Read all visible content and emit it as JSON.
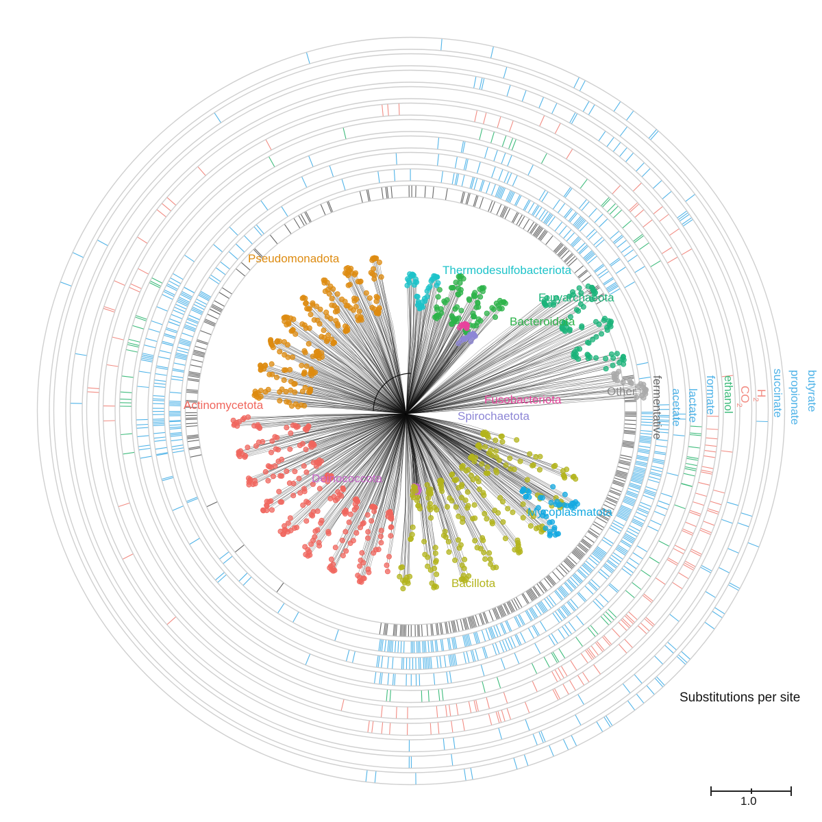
{
  "figure": {
    "kind": "circular phylogenetic tree with fermentation product rings",
    "colors": {
      "ring_outline": "#cfcfcf",
      "branch": "#111111",
      "fermentative": "#636363",
      "product_blue": "#4fb3e8",
      "product_green": "#3dbb7b",
      "product_red": "#f28b82"
    }
  },
  "clades": [
    {
      "name": "Pseudomonadota",
      "color": "#dd8b10",
      "start_deg": 102,
      "end_deg": 178
    },
    {
      "name": "Thermodesulfobacteriota",
      "color": "#1ec3c9",
      "start_deg": 78,
      "end_deg": 92
    },
    {
      "name": "Bacteroidota",
      "color": "#2db34a",
      "start_deg": 48,
      "end_deg": 77
    },
    {
      "name": "Euryarchaeota",
      "color": "#1bb37a",
      "start_deg": 12,
      "end_deg": 40
    },
    {
      "name": "Other",
      "color": "#aaaaaa",
      "start_deg": 3,
      "end_deg": 11
    },
    {
      "name": "Fusobacteriota",
      "color": "#e8439c",
      "start_deg": 56,
      "end_deg": 60
    },
    {
      "name": "Spirochaetota",
      "color": "#8d86d6",
      "start_deg": 49,
      "end_deg": 55
    },
    {
      "name": "Actinomycetota",
      "color": "#f0665d",
      "start_deg": 182,
      "end_deg": 262
    },
    {
      "name": "Deinococcota",
      "color": "#c765c9",
      "start_deg": 272,
      "end_deg": 276
    },
    {
      "name": "Bacillota",
      "color": "#b3b41c",
      "start_deg": 266,
      "end_deg": 345
    },
    {
      "name": "Mycoplasmatota",
      "color": "#14a9e1",
      "start_deg": 318,
      "end_deg": 332
    }
  ],
  "clade_labels": {
    "pseudomonadota": "Pseudomonadota",
    "thermodesulfobacteriota": "Thermodesulfobacteriota",
    "euryarchaeota": "Euryarchaeota",
    "bacteroidota": "Bacteroidota",
    "other": "Other",
    "fusobacteriota": "Fusobacteriota",
    "spirochaetota": "Spirochaetota",
    "actinomycetota": "Actinomycetota",
    "deinococcota": "Deinococcota",
    "mycoplasmatota": "Mycoplasmatota",
    "bacillota": "Bacillota"
  },
  "rings": [
    {
      "label": "fermentative",
      "color": "#636363"
    },
    {
      "label": "acetate",
      "color": "#4fb3e8"
    },
    {
      "label": "lactate",
      "color": "#4fb3e8"
    },
    {
      "label": "formate",
      "color": "#4fb3e8"
    },
    {
      "label": "ethanol",
      "color": "#3dbb7b"
    },
    {
      "label": "CO",
      "subscript": "2",
      "color": "#f28b82"
    },
    {
      "label": "H",
      "subscript": "2",
      "color": "#f28b82"
    },
    {
      "label": "succinate",
      "color": "#4fb3e8"
    },
    {
      "label": "propionate",
      "color": "#4fb3e8"
    },
    {
      "label": "butyrate",
      "color": "#4fb3e8"
    }
  ],
  "scale": {
    "title": "Substitutions per site",
    "value": "1.0"
  }
}
